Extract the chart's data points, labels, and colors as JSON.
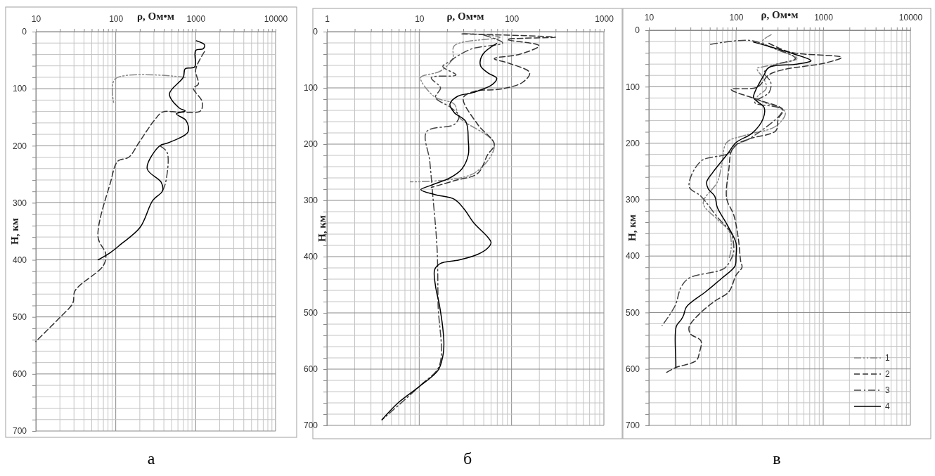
{
  "chart_data": [
    {
      "type": "line",
      "xlabel": "ρ, Ом•м",
      "ylabel": "Н, км",
      "log": "x",
      "grid": true,
      "xlim": [
        10,
        10000
      ],
      "ylim": [
        700,
        0
      ],
      "xticks": [
        10,
        {
          "value": 20,
          "label": null
        },
        {
          "value": 30,
          "label": null
        },
        {
          "value": 40,
          "label": null
        },
        {
          "value": 50,
          "label": null
        },
        {
          "value": 60,
          "label": null
        },
        {
          "value": 70,
          "label": null
        },
        {
          "value": 80,
          "label": null
        },
        {
          "value": 90,
          "label": null
        },
        100,
        {
          "value": 200,
          "label": null
        },
        {
          "value": 300,
          "label": null
        },
        {
          "value": 400,
          "label": null
        },
        {
          "value": 500,
          "label": null
        },
        {
          "value": 600,
          "label": null
        },
        {
          "value": 700,
          "label": null
        },
        {
          "value": 800,
          "label": null
        },
        {
          "value": 900,
          "label": null
        },
        1000,
        {
          "value": 2000,
          "label": null
        },
        {
          "value": 3000,
          "label": null
        },
        {
          "value": 4000,
          "label": null
        },
        {
          "value": 5000,
          "label": null
        },
        {
          "value": 6000,
          "label": null
        },
        {
          "value": 7000,
          "label": null
        },
        {
          "value": 8000,
          "label": null
        },
        {
          "value": 9000,
          "label": null
        },
        10000
      ],
      "yticks": [
        0,
        {
          "value": 20,
          "label": null
        },
        {
          "value": 40,
          "label": null
        },
        {
          "value": 60,
          "label": null
        },
        {
          "value": 80,
          "label": null
        },
        100,
        {
          "value": 120,
          "label": null
        },
        {
          "value": 140,
          "label": null
        },
        {
          "value": 160,
          "label": null
        },
        {
          "value": 180,
          "label": null
        },
        200,
        {
          "value": 220,
          "label": null
        },
        {
          "value": 240,
          "label": null
        },
        {
          "value": 260,
          "label": null
        },
        {
          "value": 280,
          "label": null
        },
        300,
        {
          "value": 320,
          "label": null
        },
        {
          "value": 340,
          "label": null
        },
        {
          "value": 360,
          "label": null
        },
        {
          "value": 380,
          "label": null
        },
        400,
        {
          "value": 420,
          "label": null
        },
        {
          "value": 440,
          "label": null
        },
        {
          "value": 460,
          "label": null
        },
        {
          "value": 480,
          "label": null
        },
        500,
        {
          "value": 520,
          "label": null
        },
        {
          "value": 540,
          "label": null
        },
        {
          "value": 560,
          "label": null
        },
        {
          "value": 580,
          "label": null
        },
        600,
        {
          "value": 620,
          "label": null
        },
        {
          "value": 640,
          "label": null
        },
        {
          "value": 660,
          "label": null
        },
        {
          "value": 680,
          "label": null
        },
        700
      ],
      "annotations": [
        "а"
      ],
      "series": [
        {
          "color": "#888888",
          "line_style": "dashdotdot",
          "x": [
            740,
            98,
            94
          ],
          "values": [
            80,
            83,
            124
          ]
        },
        {
          "color": "#333333",
          "line_style": "dashed",
          "x": [
            1290,
            1000,
            1080,
            935,
            1200,
            1150,
            625,
            385,
            302,
            194,
            146,
            106,
            86,
            60,
            75,
            70,
            31,
            29,
            20,
            13.5,
            10
          ],
          "values": [
            35,
            67,
            92,
            99,
            122,
            139,
            141,
            141,
            156,
            195,
            220,
            227,
            264,
            360,
            390,
            410,
            454,
            476,
            501,
            525,
            543
          ]
        },
        {
          "color": "#444444",
          "line_style": "dashdot",
          "x": [
            356,
            440,
            420,
            385
          ],
          "values": [
            200,
            212,
            265,
            279
          ]
        },
        {
          "color": "#000000",
          "line_style": "solid",
          "x": [
            1020,
            1290,
            1240,
            1000,
            970,
            740,
            700,
            470,
            625,
            740,
            575,
            760,
            800,
            450,
            356,
            247,
            370,
            385,
            290,
            202,
            115,
            86,
            60
          ],
          "values": [
            16,
            23,
            30,
            33,
            62,
            65,
            80,
            109,
            134,
            139,
            144,
            156,
            176,
            195,
            200,
            240,
            264,
            279,
            296,
            343,
            373,
            387,
            400
          ]
        }
      ]
    },
    {
      "type": "line",
      "xlabel": "ρ, Ом•м",
      "ylabel": "Н, км",
      "log": "x",
      "grid": true,
      "xlim": [
        1,
        1000
      ],
      "ylim": [
        700,
        0
      ],
      "xticks": [
        1,
        {
          "value": 2,
          "label": null
        },
        {
          "value": 3,
          "label": null
        },
        {
          "value": 4,
          "label": null
        },
        {
          "value": 5,
          "label": null
        },
        {
          "value": 6,
          "label": null
        },
        {
          "value": 7,
          "label": null
        },
        {
          "value": 8,
          "label": null
        },
        {
          "value": 9,
          "label": null
        },
        10,
        {
          "value": 20,
          "label": null
        },
        {
          "value": 30,
          "label": null
        },
        {
          "value": 40,
          "label": null
        },
        {
          "value": 50,
          "label": null
        },
        {
          "value": 60,
          "label": null
        },
        {
          "value": 70,
          "label": null
        },
        {
          "value": 80,
          "label": null
        },
        {
          "value": 90,
          "label": null
        },
        100,
        {
          "value": 200,
          "label": null
        },
        {
          "value": 300,
          "label": null
        },
        {
          "value": 400,
          "label": null
        },
        {
          "value": 500,
          "label": null
        },
        {
          "value": 600,
          "label": null
        },
        {
          "value": 700,
          "label": null
        },
        {
          "value": 800,
          "label": null
        },
        {
          "value": 900,
          "label": null
        },
        1000
      ],
      "yticks": [
        0,
        {
          "value": 20,
          "label": null
        },
        {
          "value": 40,
          "label": null
        },
        {
          "value": 60,
          "label": null
        },
        {
          "value": 80,
          "label": null
        },
        100,
        {
          "value": 120,
          "label": null
        },
        {
          "value": 140,
          "label": null
        },
        {
          "value": 160,
          "label": null
        },
        {
          "value": 180,
          "label": null
        },
        200,
        {
          "value": 220,
          "label": null
        },
        {
          "value": 240,
          "label": null
        },
        {
          "value": 260,
          "label": null
        },
        {
          "value": 280,
          "label": null
        },
        300,
        {
          "value": 320,
          "label": null
        },
        {
          "value": 340,
          "label": null
        },
        {
          "value": 360,
          "label": null
        },
        {
          "value": 380,
          "label": null
        },
        400,
        {
          "value": 420,
          "label": null
        },
        {
          "value": 440,
          "label": null
        },
        {
          "value": 460,
          "label": null
        },
        {
          "value": 480,
          "label": null
        },
        500,
        {
          "value": 520,
          "label": null
        },
        {
          "value": 540,
          "label": null
        },
        {
          "value": 560,
          "label": null
        },
        {
          "value": 580,
          "label": null
        },
        600,
        {
          "value": 620,
          "label": null
        },
        {
          "value": 640,
          "label": null
        },
        {
          "value": 660,
          "label": null
        },
        {
          "value": 680,
          "label": null
        },
        700
      ],
      "annotations": [
        "б"
      ],
      "series": [
        {
          "color": "#888888",
          "line_style": "dashdotdot",
          "x": [
            30,
            75,
            24,
            23,
            17,
            10.4,
            10.7,
            15,
            24,
            27,
            65,
            39,
            8
          ],
          "values": [
            3,
            10,
            25,
            48,
            70,
            81,
            90,
            117,
            129,
            152,
            200,
            252,
            267
          ]
        },
        {
          "color": "#333333",
          "line_style": "dashed",
          "x": [
            29,
            300,
            90,
            198,
            124,
            65,
            93,
            157,
            132,
            78,
            40,
            30,
            43,
            65,
            55,
            43,
            24,
            13.5
          ],
          "values": [
            4,
            10,
            14,
            25,
            40,
            48,
            56,
            73,
            90,
            102,
            106,
            118,
            165,
            200,
            219,
            252,
            265,
            277
          ]
        },
        {
          "color": "#444444",
          "line_style": "dashdot",
          "x": [
            50,
            80,
            38,
            25,
            22,
            18,
            25,
            13.5,
            17,
            15,
            22,
            27,
            24,
            12,
            13,
            14,
            15.6,
            16,
            16.5,
            10.6,
            3.95
          ],
          "values": [
            6,
            20,
            30,
            45,
            52,
            62,
            77,
            82,
            100,
            117,
            135,
            150,
            165,
            178,
            230,
            290,
            385,
            485,
            594,
            627,
            690
          ]
        },
        {
          "color": "#000000",
          "line_style": "solid",
          "x": [
            69,
            49,
            46,
            55,
            69,
            62,
            39,
            26,
            21.5,
            24,
            32,
            34,
            34,
            29,
            21.5,
            13.5,
            10.4,
            15,
            24,
            30.5,
            39,
            55,
            60,
            55,
            43,
            27,
            17,
            14.7,
            15,
            16.5,
            18,
            18.5,
            18,
            16,
            10,
            5.9,
            3.95
          ],
          "values": [
            21,
            40,
            60,
            73,
            83,
            94,
            108,
            115,
            129,
            144,
            160,
            194,
            219,
            244,
            260,
            273,
            281,
            290,
            298,
            315,
            340,
            365,
            375,
            385,
            396,
            406,
            412,
            423,
            452,
            485,
            527,
            556,
            577,
            602,
            631,
            660,
            690
          ]
        }
      ]
    },
    {
      "type": "line",
      "xlabel": "ρ, Ом•м",
      "ylabel": "Н, км",
      "log": "x",
      "grid": true,
      "legend": "bottom right",
      "xlim": [
        10,
        10000
      ],
      "ylim": [
        700,
        0
      ],
      "xticks": [
        10,
        {
          "value": 20,
          "label": null
        },
        {
          "value": 30,
          "label": null
        },
        {
          "value": 40,
          "label": null
        },
        {
          "value": 50,
          "label": null
        },
        {
          "value": 60,
          "label": null
        },
        {
          "value": 70,
          "label": null
        },
        {
          "value": 80,
          "label": null
        },
        {
          "value": 90,
          "label": null
        },
        100,
        {
          "value": 200,
          "label": null
        },
        {
          "value": 300,
          "label": null
        },
        {
          "value": 400,
          "label": null
        },
        {
          "value": 500,
          "label": null
        },
        {
          "value": 600,
          "label": null
        },
        {
          "value": 700,
          "label": null
        },
        {
          "value": 800,
          "label": null
        },
        {
          "value": 900,
          "label": null
        },
        1000,
        {
          "value": 2000,
          "label": null
        },
        {
          "value": 3000,
          "label": null
        },
        {
          "value": 4000,
          "label": null
        },
        {
          "value": 5000,
          "label": null
        },
        {
          "value": 6000,
          "label": null
        },
        {
          "value": 7000,
          "label": null
        },
        {
          "value": 8000,
          "label": null
        },
        {
          "value": 9000,
          "label": null
        },
        10000
      ],
      "yticks": [
        0,
        {
          "value": 20,
          "label": null
        },
        {
          "value": 40,
          "label": null
        },
        {
          "value": 60,
          "label": null
        },
        {
          "value": 80,
          "label": null
        },
        100,
        {
          "value": 120,
          "label": null
        },
        {
          "value": 140,
          "label": null
        },
        {
          "value": 160,
          "label": null
        },
        {
          "value": 180,
          "label": null
        },
        200,
        {
          "value": 220,
          "label": null
        },
        {
          "value": 240,
          "label": null
        },
        {
          "value": 260,
          "label": null
        },
        {
          "value": 280,
          "label": null
        },
        300,
        {
          "value": 320,
          "label": null
        },
        {
          "value": 340,
          "label": null
        },
        {
          "value": 360,
          "label": null
        },
        {
          "value": 380,
          "label": null
        },
        400,
        {
          "value": 420,
          "label": null
        },
        {
          "value": 440,
          "label": null
        },
        {
          "value": 460,
          "label": null
        },
        {
          "value": 480,
          "label": null
        },
        500,
        {
          "value": 520,
          "label": null
        },
        {
          "value": 540,
          "label": null
        },
        {
          "value": 560,
          "label": null
        },
        {
          "value": 580,
          "label": null
        },
        600,
        {
          "value": 620,
          "label": null
        },
        {
          "value": 640,
          "label": null
        },
        {
          "value": 660,
          "label": null
        },
        {
          "value": 680,
          "label": null
        },
        700
      ],
      "annotations": [
        "в"
      ],
      "series": [
        {
          "name": "1",
          "color": "#888888",
          "line_style": "dashdotdot",
          "x": [
            253,
            200,
            300,
            500,
            200,
            174,
            210,
            222,
            174,
            367,
            286,
            128,
            78,
            69,
            61,
            42,
            61,
            83,
            88,
            83
          ],
          "values": [
            8,
            20,
            35,
            50,
            65,
            68,
            87,
            103,
            120,
            145,
            170,
            186,
            199,
            236,
            269,
            306,
            335,
            356,
            385,
            405
          ]
        },
        {
          "name": "2",
          "color": "#333333",
          "line_style": "dashed",
          "x": [
            238,
            420,
            1620,
            1050,
            345,
            238,
            174,
            88,
            185,
            345,
            305,
            286,
            145,
            100,
            88,
            83,
            78,
            94,
            106,
            113,
            117,
            100,
            83,
            57,
            39.5,
            29,
            30,
            39.5,
            38,
            35,
            20,
            16
          ],
          "values": [
            23,
            39,
            48,
            58,
            70,
            79,
            101,
            105,
            124,
            141,
            157,
            178,
            192,
            203,
            215,
            244,
            298,
            327,
            368,
            409,
            420,
            434,
            463,
            480,
            500,
            525,
            538,
            550,
            571,
            585,
            598,
            606
          ]
        },
        {
          "name": "3",
          "color": "#444444",
          "line_style": "dashdot",
          "x": [
            51,
            145,
            250,
            480,
            270,
            210,
            250,
            240,
            164,
            340,
            150,
            102,
            80,
            39.5,
            29,
            39.5,
            61,
            88,
            94,
            88,
            73,
            29,
            23.4,
            20,
            14.2
          ],
          "values": [
            25,
            18,
            30,
            50,
            62,
            75,
            92,
            110,
            128,
            141,
            190,
            203,
            219,
            232,
            277,
            294,
            331,
            360,
            393,
            405,
            422,
            439,
            455,
            488,
            523
          ]
        },
        {
          "name": "4",
          "color": "#000000",
          "line_style": "solid",
          "x": [
            159,
            441,
            725,
            500,
            238,
            210,
            164,
            159,
            210,
            204,
            154,
            100,
            80,
            54,
            46,
            48,
            57,
            61,
            78,
            100,
            100,
            97,
            69,
            45,
            27,
            25,
            23.4,
            20.6,
            20.4,
            20.4
          ],
          "values": [
            21,
            41,
            54,
            60,
            66,
            79,
            110,
            120,
            137,
            157,
            182,
            199,
            219,
            252,
            269,
            281,
            294,
            314,
            343,
            377,
            401,
            418,
            439,
            463,
            490,
            505,
            513,
            525,
            588,
            598
          ]
        }
      ]
    }
  ]
}
